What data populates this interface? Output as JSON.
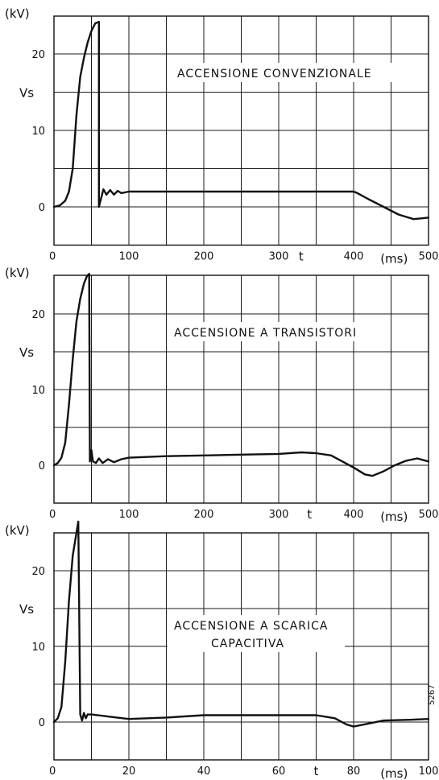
{
  "chart_data": [
    {
      "type": "line",
      "title": "ACCENSIONE CONVENZIONALE",
      "y_unit": "(kV)",
      "ylabel": "Vs",
      "xlabel": "t",
      "x_unit": "(ms)",
      "xlim": [
        0,
        500
      ],
      "ylim": [
        -5,
        25
      ],
      "x_ticks": [
        0,
        100,
        200,
        300,
        400,
        500
      ],
      "y_ticks": [
        0,
        10,
        20
      ],
      "grid": true,
      "series": [
        {
          "values": [
            [
              0,
              0
            ],
            [
              8,
              0.2
            ],
            [
              15,
              0.8
            ],
            [
              20,
              2
            ],
            [
              25,
              5
            ],
            [
              30,
              12
            ],
            [
              35,
              17
            ],
            [
              40,
              19.5
            ],
            [
              45,
              21.5
            ],
            [
              50,
              23
            ],
            [
              55,
              24
            ],
            [
              60,
              24.2
            ],
            [
              60,
              0
            ],
            [
              62,
              0.8
            ],
            [
              66,
              2.3
            ],
            [
              70,
              1.6
            ],
            [
              75,
              2.2
            ],
            [
              80,
              1.6
            ],
            [
              85,
              2.1
            ],
            [
              90,
              1.8
            ],
            [
              100,
              2
            ],
            [
              150,
              2
            ],
            [
              200,
              2
            ],
            [
              250,
              2
            ],
            [
              300,
              2
            ],
            [
              350,
              2
            ],
            [
              400,
              2
            ],
            [
              405,
              1.8
            ],
            [
              420,
              1
            ],
            [
              440,
              0
            ],
            [
              460,
              -1
            ],
            [
              480,
              -1.6
            ],
            [
              490,
              -1.5
            ],
            [
              500,
              -1.4
            ]
          ]
        }
      ]
    },
    {
      "type": "line",
      "title": "ACCENSIONE A TRANSISTORI",
      "y_unit": "(kV)",
      "ylabel": "Vs",
      "xlabel": "t",
      "x_unit": "(ms)",
      "xlim": [
        0,
        500
      ],
      "ylim": [
        -5,
        25
      ],
      "x_ticks": [
        0,
        100,
        200,
        300,
        400,
        500
      ],
      "y_ticks": [
        0,
        10,
        20
      ],
      "grid": true,
      "series": [
        {
          "values": [
            [
              0,
              0
            ],
            [
              5,
              0.3
            ],
            [
              10,
              1
            ],
            [
              15,
              3
            ],
            [
              20,
              8
            ],
            [
              25,
              14
            ],
            [
              30,
              19
            ],
            [
              35,
              22
            ],
            [
              40,
              24
            ],
            [
              44,
              25
            ],
            [
              47,
              25.3
            ],
            [
              48,
              0.5
            ],
            [
              50,
              2
            ],
            [
              52,
              0.5
            ],
            [
              56,
              0.3
            ],
            [
              60,
              0.9
            ],
            [
              65,
              0.3
            ],
            [
              72,
              0.8
            ],
            [
              80,
              0.4
            ],
            [
              90,
              0.8
            ],
            [
              100,
              1
            ],
            [
              150,
              1.2
            ],
            [
              200,
              1.3
            ],
            [
              250,
              1.4
            ],
            [
              300,
              1.5
            ],
            [
              330,
              1.7
            ],
            [
              350,
              1.6
            ],
            [
              370,
              1.3
            ],
            [
              385,
              0.5
            ],
            [
              400,
              -0.3
            ],
            [
              415,
              -1.2
            ],
            [
              425,
              -1.4
            ],
            [
              440,
              -0.8
            ],
            [
              455,
              0
            ],
            [
              470,
              0.6
            ],
            [
              485,
              0.9
            ],
            [
              500,
              0.5
            ]
          ]
        }
      ]
    },
    {
      "type": "line",
      "title": "ACCENSIONE A SCARICA CAPACITIVA",
      "y_unit": "(kV)",
      "ylabel": "Vs",
      "xlabel": "t",
      "x_unit": "(ms)",
      "xlim": [
        0,
        100
      ],
      "ylim": [
        -5,
        25
      ],
      "x_ticks": [
        0,
        20,
        40,
        60,
        80,
        100
      ],
      "y_ticks": [
        0,
        10,
        20
      ],
      "grid": true,
      "series": [
        {
          "values": [
            [
              0,
              0
            ],
            [
              1,
              0.5
            ],
            [
              2,
              2
            ],
            [
              3,
              8
            ],
            [
              4,
              16
            ],
            [
              5,
              22
            ],
            [
              6,
              25
            ],
            [
              6.5,
              26.5
            ],
            [
              7,
              1
            ],
            [
              7.5,
              0.2
            ],
            [
              8,
              1.2
            ],
            [
              8.5,
              0.5
            ],
            [
              9,
              1
            ],
            [
              10,
              1
            ],
            [
              15,
              0.7
            ],
            [
              20,
              0.4
            ],
            [
              30,
              0.6
            ],
            [
              40,
              0.9
            ],
            [
              50,
              0.9
            ],
            [
              60,
              0.9
            ],
            [
              70,
              0.9
            ],
            [
              75,
              0.5
            ],
            [
              78,
              -0.3
            ],
            [
              80,
              -0.6
            ],
            [
              83,
              -0.3
            ],
            [
              88,
              0.2
            ],
            [
              95,
              0.3
            ],
            [
              100,
              0.4
            ]
          ]
        }
      ]
    }
  ],
  "figure_code": "5267"
}
